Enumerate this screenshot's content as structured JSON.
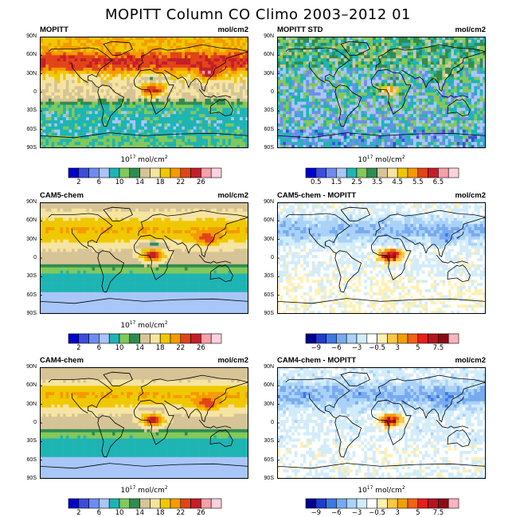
{
  "title": "MOPITT Column CO Climo 2003–2012 01",
  "colors": {
    "abs": [
      "#0000c8",
      "#3c4cdc",
      "#6e8cf0",
      "#a8c6f8",
      "#1eb4b4",
      "#82c85a",
      "#2f8c50",
      "#d6c496",
      "#f6e4a2",
      "#f0c800",
      "#f59a00",
      "#e24418",
      "#c41e28",
      "#f7a0aa",
      "#fcd2dc"
    ],
    "std": [
      "#0000c8",
      "#3c4cdc",
      "#6e8cf0",
      "#a8c6f8",
      "#1eb4b4",
      "#82c85a",
      "#2f8c50",
      "#d6c496",
      "#f6e4a2",
      "#f0c800",
      "#f59a00",
      "#e24418",
      "#c41e28",
      "#f7a0aa",
      "#fcd2dc"
    ],
    "diff": [
      "#00008c",
      "#1e3cc8",
      "#3c78e6",
      "#78aaf0",
      "#aad2f8",
      "#d2ecfa",
      "#ffffff",
      "#fff0b4",
      "#fac846",
      "#f0a000",
      "#f06414",
      "#e61e1e",
      "#b4141e",
      "#8c0a14",
      "#fab4c0"
    ]
  },
  "panels": [
    {
      "title": "MOPITT",
      "units_right": "mol/cm2",
      "colorbar": "abs",
      "field": "mopitt",
      "colorbar_label_base": "10",
      "colorbar_label_exp": "17",
      "colorbar_label_unit": "mol/cm",
      "tick_labels": [
        "2",
        "6",
        "10",
        "14",
        "18",
        "22",
        "26"
      ]
    },
    {
      "title": "MOPITT STD",
      "units_right": "mol/cm2",
      "colorbar": "std",
      "field": "std",
      "colorbar_label_base": "10",
      "colorbar_label_exp": "17",
      "colorbar_label_unit": "mol/cm",
      "tick_labels": [
        "0.5",
        "1.5",
        "2.5",
        "3.5",
        "4.5",
        "5.5",
        "6.5"
      ]
    },
    {
      "title": "CAM5-chem",
      "units_right": "mol/cm2",
      "colorbar": "abs",
      "field": "cam5",
      "colorbar_label_base": "10",
      "colorbar_label_exp": "17",
      "colorbar_label_unit": "mol/cm",
      "tick_labels": [
        "2",
        "6",
        "10",
        "14",
        "18",
        "22",
        "26"
      ]
    },
    {
      "title": "CAM5-chem - MOPITT",
      "units_right": "mol/cm2",
      "colorbar": "diff",
      "field": "diff5",
      "colorbar_label_base": "",
      "colorbar_label_exp": "",
      "colorbar_label_unit": "",
      "tick_labels": [
        "−9",
        "−6",
        "−3",
        "−0.5",
        "3",
        "5",
        "7.5"
      ]
    },
    {
      "title": "CAM4-chem",
      "units_right": "mol/cm2",
      "colorbar": "abs",
      "field": "cam4",
      "colorbar_label_base": "10",
      "colorbar_label_exp": "17",
      "colorbar_label_unit": "mol/cm",
      "tick_labels": [
        "2",
        "6",
        "10",
        "14",
        "18",
        "22",
        "26"
      ]
    },
    {
      "title": "CAM4-chem - MOPITT",
      "units_right": "mol/cm2",
      "colorbar": "diff",
      "field": "diff4",
      "colorbar_label_base": "10",
      "colorbar_label_exp": "17",
      "colorbar_label_unit": "mol/cm",
      "tick_labels": [
        "−9",
        "−6",
        "−3",
        "−0.5",
        "3",
        "5",
        "7.5"
      ]
    }
  ],
  "lat_labels": [
    "90N",
    "60N",
    "30N",
    "0",
    "30S",
    "60S",
    "90S"
  ],
  "chart_data": [
    {
      "type": "heatmap",
      "title": "MOPITT",
      "units": "10^17 mol/cm2",
      "ylim": [
        -90,
        90
      ],
      "colorbar_levels": [
        2,
        4,
        6,
        8,
        10,
        12,
        14,
        16,
        18,
        20,
        22,
        24,
        26,
        28
      ],
      "zonal_mean_approx": {
        "lat": [
          80,
          60,
          45,
          30,
          15,
          0,
          -15,
          -30,
          -45,
          -60,
          -75
        ],
        "value": [
          14,
          22,
          24,
          20,
          18,
          17,
          14,
          11,
          10,
          9,
          9
        ]
      }
    },
    {
      "type": "heatmap",
      "title": "MOPITT STD",
      "units": "10^17 mol/cm2",
      "ylim": [
        -90,
        90
      ],
      "colorbar_levels": [
        0.5,
        1,
        1.5,
        2,
        2.5,
        3,
        3.5,
        4,
        4.5,
        5,
        5.5,
        6,
        6.5,
        7
      ]
    },
    {
      "type": "heatmap",
      "title": "CAM5-chem",
      "units": "10^17 mol/cm2",
      "ylim": [
        -90,
        90
      ],
      "colorbar_levels": [
        2,
        4,
        6,
        8,
        10,
        12,
        14,
        16,
        18,
        20,
        22,
        24,
        26,
        28
      ]
    },
    {
      "type": "heatmap",
      "title": "CAM5-chem - MOPITT",
      "units": "10^17 mol/cm2",
      "ylim": [
        -90,
        90
      ],
      "colorbar_levels": [
        -9,
        -7.5,
        -6,
        -4.5,
        -3,
        -1.5,
        -0.5,
        0.5,
        2,
        3,
        4,
        5,
        6,
        7.5
      ]
    },
    {
      "type": "heatmap",
      "title": "CAM4-chem",
      "units": "10^17 mol/cm2",
      "ylim": [
        -90,
        90
      ],
      "colorbar_levels": [
        2,
        4,
        6,
        8,
        10,
        12,
        14,
        16,
        18,
        20,
        22,
        24,
        26,
        28
      ]
    },
    {
      "type": "heatmap",
      "title": "CAM4-chem - MOPITT",
      "units": "10^17 mol/cm2",
      "ylim": [
        -90,
        90
      ],
      "colorbar_levels": [
        -9,
        -7.5,
        -6,
        -4.5,
        -3,
        -1.5,
        -0.5,
        0.5,
        2,
        3,
        4,
        5,
        6,
        7.5
      ]
    }
  ]
}
